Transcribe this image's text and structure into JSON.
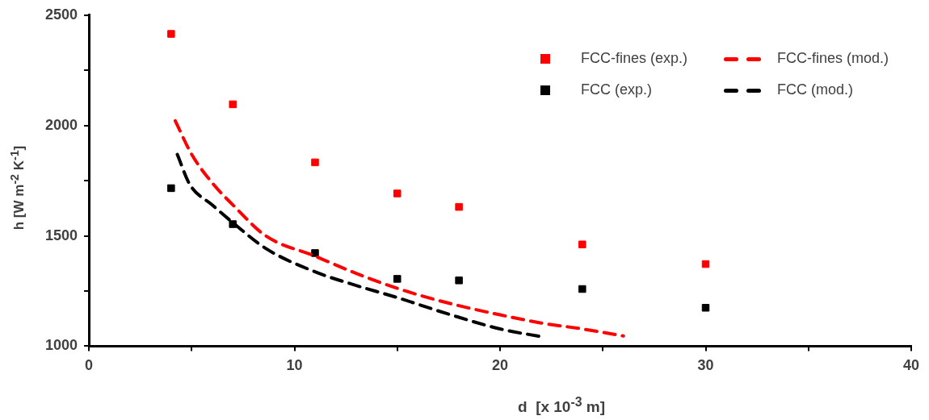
{
  "chart_data": {
    "type": "scatter",
    "xlabel": "d  [x 10$^{-3}$ m]",
    "ylabel": "h [W m$^{-2}$ K$^{-1}$]",
    "xlim": [
      0,
      40
    ],
    "xticks": [
      0,
      {
        "value": 5,
        "label": null
      },
      10,
      {
        "value": 15,
        "label": null
      },
      20,
      {
        "value": 25,
        "label": null
      },
      30,
      {
        "value": 35,
        "label": null
      },
      40
    ],
    "ylim": [
      1000,
      2500
    ],
    "yticks": [
      1000,
      {
        "value": 1250,
        "label": null
      },
      1500,
      {
        "value": 1750,
        "label": null
      },
      2000,
      {
        "value": 2250,
        "label": null
      },
      2500
    ],
    "grid": false,
    "legend": "top right",
    "series": [
      {
        "name": "FCC-fines (exp.)",
        "type": "scatter",
        "marker": "square",
        "color": "#ff0000",
        "x": [
          4,
          7,
          11,
          15,
          18,
          24,
          30
        ],
        "values": [
          2415,
          2096,
          1833,
          1692,
          1631,
          1461,
          1372
        ]
      },
      {
        "name": "FCC-fines (mod.)",
        "type": "line",
        "marker": "none",
        "line_style": "dashed",
        "color": "#ff0000",
        "x": [
          4.2,
          5,
          6,
          7.1,
          8.6,
          11,
          13,
          15,
          17.5,
          20,
          22,
          24,
          26
        ],
        "values": [
          2021,
          1869,
          1740,
          1631,
          1500,
          1408,
          1330,
          1262,
          1195,
          1142,
          1105,
          1078,
          1046
        ]
      },
      {
        "name": "FCC (exp.)",
        "type": "scatter",
        "marker": "square",
        "color": "#000000",
        "x": [
          4,
          7,
          11,
          15,
          18,
          24,
          30
        ],
        "values": [
          1716,
          1553,
          1422,
          1305,
          1298,
          1259,
          1174
        ]
      },
      {
        "name": "FCC (mod.)",
        "type": "line",
        "marker": "none",
        "line_style": "dashed",
        "color": "#000000",
        "x": [
          4.3,
          4.9,
          6,
          7,
          8.6,
          11,
          13,
          15,
          17.5,
          20,
          22
        ],
        "values": [
          1869,
          1734,
          1640,
          1560,
          1443,
          1337,
          1275,
          1220,
          1145,
          1078,
          1043
        ]
      }
    ]
  }
}
